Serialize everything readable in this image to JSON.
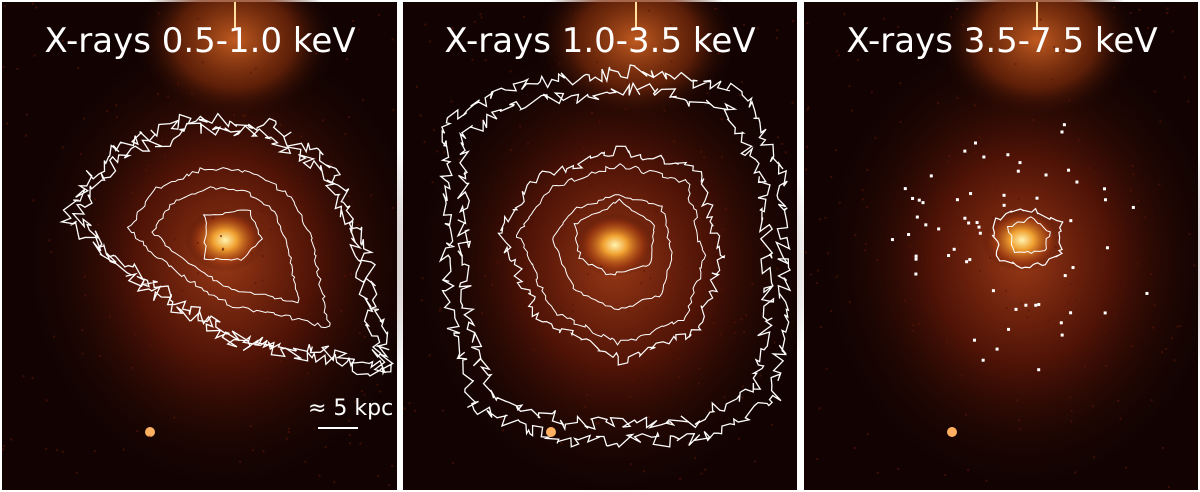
{
  "panels": [
    {
      "title": "X-rays 0.5-1.0 keV"
    },
    {
      "title": "X-rays 1.0-3.5 keV"
    },
    {
      "title": "X-rays 3.5-7.5 keV"
    }
  ],
  "scale_bar": {
    "label": "≈ 5 kpc"
  }
}
